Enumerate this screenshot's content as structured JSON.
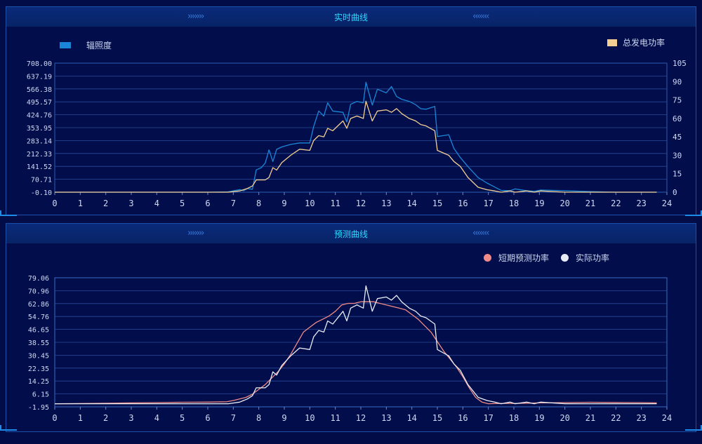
{
  "colors": {
    "background": "#020d47",
    "panel_header": "#082467",
    "title": "#2ad9ff",
    "irradiance": "#1a86d8",
    "power": "#f4cf93",
    "forecast": "#f08a86",
    "actual": "#e8ecf4",
    "axis_text": "#cfd8f2",
    "grid": "#2a4a9a"
  },
  "top_panel": {
    "title": "实时曲线"
  },
  "bottom_panel": {
    "title": "预测曲线"
  },
  "chart_data": [
    {
      "type": "line",
      "title": "实时曲线",
      "xlim": [
        0,
        24
      ],
      "x_ticks": [
        "0",
        "1",
        "2",
        "3",
        "4",
        "5",
        "6",
        "7",
        "8",
        "9",
        "10",
        "11",
        "12",
        "13",
        "14",
        "15",
        "16",
        "17",
        "18",
        "19",
        "20",
        "21",
        "22",
        "23",
        "24"
      ],
      "y_left_ticks": [
        "708.00",
        "637.19",
        "566.38",
        "495.57",
        "424.76",
        "353.95",
        "283.14",
        "212.33",
        "141.52",
        "70.71",
        "-0.10"
      ],
      "y_left_lim": [
        -0.1,
        708
      ],
      "y_right_ticks": [
        "105",
        "90",
        "75",
        "60",
        "45",
        "30",
        "15",
        "0"
      ],
      "y_right_lim": [
        0,
        105
      ],
      "grid": true,
      "legend": "top",
      "series": [
        {
          "name": "辐照度",
          "axis": "left",
          "color": "#1a86d8",
          "x": [
            0,
            1,
            2,
            3,
            4,
            5,
            6,
            6.8,
            7.25,
            7.4,
            7.55,
            7.75,
            7.9,
            8.1,
            8.25,
            8.4,
            8.55,
            8.7,
            8.9,
            9.25,
            9.6,
            10,
            10.15,
            10.35,
            10.55,
            10.7,
            10.9,
            11.3,
            11.45,
            11.6,
            11.85,
            12.1,
            12.2,
            12.45,
            12.65,
            13,
            13.2,
            13.4,
            13.6,
            13.9,
            14.15,
            14.35,
            14.55,
            14.9,
            15.0,
            15.45,
            15.65,
            15.9,
            16.2,
            16.6,
            16.95,
            17.25,
            17.5,
            17.85,
            18.05,
            18.5,
            18.8,
            19.05,
            20,
            21,
            22,
            23,
            23.6
          ],
          "values": [
            0,
            0,
            0,
            0,
            0,
            0,
            0,
            2,
            14,
            8,
            20,
            16,
            122,
            135,
            160,
            232,
            168,
            235,
            248,
            262,
            270,
            270,
            360,
            445,
            418,
            490,
            445,
            438,
            385,
            482,
            498,
            490,
            603,
            478,
            565,
            545,
            580,
            525,
            510,
            498,
            480,
            458,
            455,
            470,
            305,
            315,
            240,
            190,
            140,
            80,
            50,
            28,
            10,
            8,
            18,
            8,
            5,
            12,
            8,
            3,
            0,
            0,
            0
          ]
        },
        {
          "name": "总发电功率",
          "axis": "right",
          "color": "#f4cf93",
          "x": [
            0,
            1,
            2,
            3,
            4,
            5,
            6,
            6.8,
            7.25,
            7.4,
            7.55,
            7.75,
            7.9,
            8.1,
            8.25,
            8.4,
            8.55,
            8.7,
            8.9,
            9.25,
            9.6,
            10,
            10.15,
            10.35,
            10.55,
            10.7,
            10.9,
            11.3,
            11.45,
            11.6,
            11.85,
            12.1,
            12.2,
            12.45,
            12.65,
            13,
            13.2,
            13.4,
            13.6,
            13.9,
            14.15,
            14.35,
            14.55,
            14.9,
            15.0,
            15.45,
            15.65,
            15.9,
            16.2,
            16.6,
            16.95,
            17.25,
            17.5,
            17.85,
            18.05,
            18.5,
            18.8,
            19.05,
            20,
            21,
            22,
            23,
            23.6
          ],
          "values": [
            0,
            0,
            0,
            0,
            0,
            0,
            0,
            0,
            1,
            2,
            3,
            5,
            10,
            10,
            10,
            12,
            20,
            18,
            24,
            30,
            35,
            34,
            42,
            46,
            45,
            52,
            50,
            58,
            52,
            60,
            62,
            60,
            74,
            58,
            66,
            67,
            65,
            68,
            64,
            60,
            58,
            55,
            54,
            50,
            34,
            30,
            25,
            21,
            12,
            4,
            2,
            1,
            0,
            1,
            0,
            1,
            0,
            1,
            0,
            0,
            0,
            0,
            0
          ]
        }
      ]
    },
    {
      "type": "line",
      "title": "预测曲线",
      "xlim": [
        0,
        24
      ],
      "x_ticks": [
        "0",
        "1",
        "2",
        "3",
        "4",
        "5",
        "6",
        "7",
        "8",
        "9",
        "10",
        "11",
        "12",
        "13",
        "14",
        "15",
        "16",
        "17",
        "18",
        "19",
        "20",
        "21",
        "22",
        "23",
        "24"
      ],
      "y_ticks": [
        "79.06",
        "70.96",
        "62.86",
        "54.76",
        "46.65",
        "38.55",
        "30.45",
        "22.35",
        "14.25",
        "6.15",
        "-1.95"
      ],
      "ylim": [
        -1.95,
        79.06
      ],
      "grid": true,
      "legend": "top-right",
      "series": [
        {
          "name": "短期预测功率",
          "color": "#f08a86",
          "x": [
            0,
            1,
            2,
            3,
            4,
            5,
            6,
            6.75,
            7,
            7.5,
            7.75,
            8,
            8.25,
            8.5,
            8.75,
            9,
            9.25,
            9.5,
            9.75,
            10,
            10.25,
            10.5,
            10.75,
            11,
            11.25,
            11.5,
            11.75,
            12,
            12.25,
            12.5,
            12.75,
            13,
            13.25,
            13.5,
            13.75,
            14,
            14.25,
            14.5,
            14.75,
            15,
            15.25,
            15.5,
            15.75,
            16,
            16.25,
            16.5,
            16.75,
            17,
            17.25,
            17.5,
            18,
            18.5,
            19,
            20,
            21,
            22,
            23,
            23.6
          ],
          "values": [
            0,
            0.1,
            0.3,
            0.5,
            0.7,
            0.9,
            1,
            1.2,
            2,
            4,
            6,
            9,
            12,
            16,
            20,
            25,
            31,
            38,
            45,
            48,
            51,
            53,
            55,
            58,
            62,
            63,
            63,
            64,
            64,
            64,
            63,
            62,
            61,
            60,
            59,
            56,
            53,
            49,
            45,
            39,
            33,
            28,
            23,
            17,
            10,
            4,
            1,
            0,
            0.1,
            0.2,
            0.2,
            0.3,
            0.5,
            0.7,
            0.9,
            0.8,
            0.7,
            0.5
          ]
        },
        {
          "name": "实际功率",
          "color": "#e8ecf4",
          "x": [
            0,
            1,
            2,
            3,
            4,
            5,
            6,
            6.8,
            7.25,
            7.4,
            7.55,
            7.75,
            7.9,
            8.1,
            8.25,
            8.4,
            8.55,
            8.7,
            8.9,
            9.25,
            9.6,
            10,
            10.15,
            10.35,
            10.55,
            10.7,
            10.9,
            11.3,
            11.45,
            11.6,
            11.85,
            12.1,
            12.2,
            12.45,
            12.65,
            13,
            13.2,
            13.4,
            13.6,
            13.9,
            14.15,
            14.35,
            14.55,
            14.9,
            15.0,
            15.45,
            15.65,
            15.9,
            16.2,
            16.6,
            16.95,
            17.25,
            17.5,
            17.85,
            18.05,
            18.5,
            18.8,
            19.05,
            20,
            21,
            22,
            23,
            23.6
          ],
          "values": [
            0,
            0,
            0,
            0,
            0,
            0,
            0,
            0,
            1,
            2,
            3,
            5,
            10,
            10,
            10,
            12,
            20,
            18,
            24,
            30,
            35,
            34,
            42,
            46,
            45,
            52,
            50,
            58,
            52,
            60,
            62,
            60,
            74,
            58,
            66,
            67,
            65,
            68,
            64,
            60,
            58,
            55,
            54,
            50,
            34,
            30,
            25,
            21,
            12,
            4,
            2,
            1,
            0,
            1,
            0,
            1,
            0,
            1,
            0,
            0,
            0,
            0,
            0
          ]
        }
      ]
    }
  ]
}
